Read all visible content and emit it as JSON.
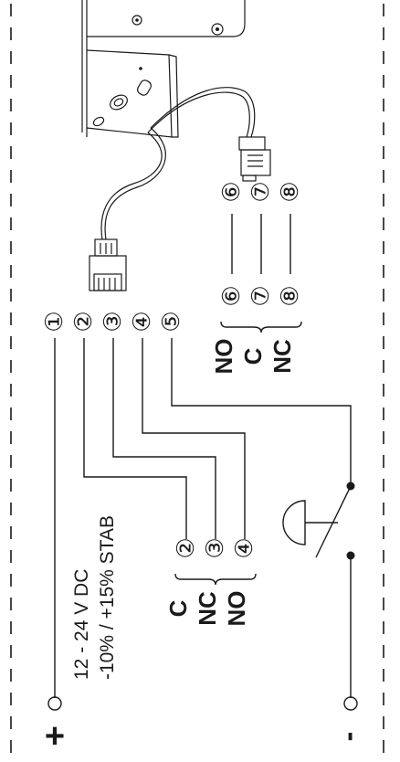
{
  "supply": {
    "voltage": "12 - 24 V DC",
    "tolerance": "-10% / +15% STAB",
    "plus_symbol": "+",
    "minus_symbol": "-"
  },
  "relay_a": {
    "terminals": [
      "②",
      "③",
      "④"
    ],
    "labels": [
      "C",
      "NC",
      "NO"
    ]
  },
  "relay_b": {
    "terminals": [
      "⑥",
      "⑦",
      "⑧"
    ],
    "labels": [
      "NO",
      "C",
      "NC"
    ]
  },
  "top_terminals": [
    "①",
    "②",
    "③",
    "④",
    "⑤"
  ],
  "plug_terminals": [
    "⑥",
    "⑦",
    "⑧"
  ]
}
